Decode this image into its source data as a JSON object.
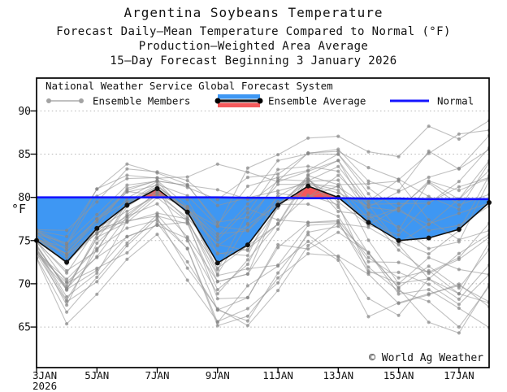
{
  "titles": {
    "line1": "Argentina Soybeans Temperature",
    "line2": "Forecast Daily–Mean Temperature Compared to Normal (°F)",
    "line3": "Production–Weighted Area Average",
    "line4": "15–Day Forecast Beginning 3 January 2026"
  },
  "legend": {
    "header": "National Weather Service Global Forecast System",
    "members_label": "Ensemble Members",
    "average_label": "Ensemble Average",
    "normal_label": "Normal"
  },
  "axes": {
    "y_unit": "°F",
    "y_ticks": [
      65,
      70,
      75,
      80,
      85,
      90
    ],
    "x_tick_days": [
      3,
      5,
      7,
      9,
      11,
      13,
      15,
      17
    ],
    "x_tick_labels": [
      "3JAN",
      "5JAN",
      "7JAN",
      "9JAN",
      "11JAN",
      "13JAN",
      "15JAN",
      "17JAN"
    ],
    "x_year": "2026"
  },
  "watermark": "© World Ag Weather",
  "colors": {
    "normal_line": "#1414ff",
    "below_normal_fill": "#3e97f3",
    "above_normal_fill": "#f4595b",
    "ensemble_average": "#111111",
    "ensemble_member_line": "rgba(150,150,150,0.60)",
    "ensemble_member_dot": "rgba(133,133,133,0.68)",
    "gridline": "#b5b5b5",
    "axis": "#000000"
  },
  "chart_data": {
    "type": "line",
    "x_days": [
      3,
      4,
      5,
      6,
      7,
      8,
      9,
      10,
      11,
      12,
      13,
      14,
      15,
      16,
      17,
      18
    ],
    "x_start": 3,
    "x_end": 18,
    "x_axis_note": "days of January 2026, labels every 2 days",
    "ylim": [
      60.3,
      93.8
    ],
    "grid": "horizontal dotted at each 5°F",
    "legend_position": "top-left inside plot",
    "series": [
      {
        "name": "Ensemble Average",
        "values": [
          75.0,
          72.5,
          76.4,
          79.1,
          81.0,
          78.3,
          72.4,
          74.5,
          79.1,
          81.3,
          80.0,
          77.1,
          75.0,
          75.3,
          76.3,
          79.4
        ]
      },
      {
        "name": "Normal",
        "values": [
          80.0,
          80.0,
          80.0,
          80.0,
          80.0,
          80.0,
          80.0,
          79.95,
          79.95,
          79.9,
          79.9,
          79.85,
          79.85,
          79.8,
          79.8,
          79.8
        ]
      }
    ],
    "ensemble_members": {
      "count": 30,
      "note": "individual member trajectories not exactly readable; envelope per day captured below, curves synthesized deterministically",
      "min": [
        72.8,
        65.7,
        69.0,
        73.0,
        75.0,
        71.0,
        64.9,
        65.3,
        68.5,
        72.0,
        72.0,
        67.0,
        65.0,
        65.0,
        65.2,
        66.0
      ],
      "max": [
        76.5,
        76.0,
        81.0,
        83.5,
        83.5,
        83.0,
        83.0,
        84.8,
        85.0,
        86.5,
        88.7,
        86.0,
        87.0,
        87.3,
        88.0,
        88.5
      ],
      "seed": 11,
      "persistence": 0.66,
      "pull": 0.28,
      "noise": 0.72
    },
    "fill_rule": "blue fill where Ensemble Average below Normal, red fill where above"
  }
}
